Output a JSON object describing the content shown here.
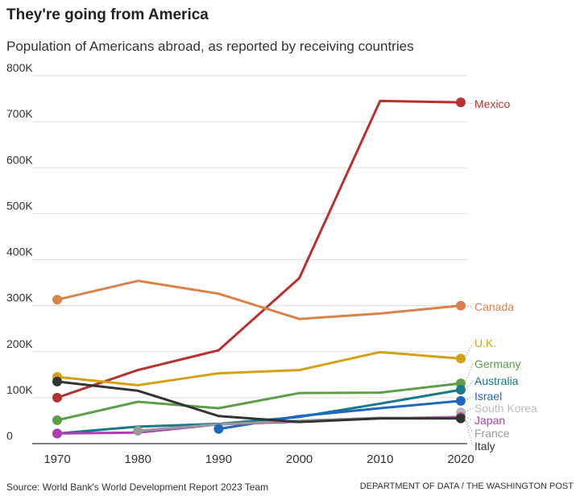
{
  "title": "They're going from America",
  "subtitle": "Population of Americans abroad, as reported by receiving countries",
  "source": "Source: World Bank's World Development Report 2023 Team",
  "credit": "DEPARTMENT OF DATA / THE WASHINGTON POST",
  "chart_data": {
    "type": "line",
    "x": [
      1970,
      1980,
      1990,
      2000,
      2010,
      2020
    ],
    "xlim": [
      1970,
      2020
    ],
    "ylim": [
      0,
      800000
    ],
    "yticks": [
      0,
      100000,
      200000,
      300000,
      400000,
      500000,
      600000,
      700000,
      800000
    ],
    "ytick_labels": [
      "0",
      "100K",
      "200K",
      "300K",
      "400K",
      "500K",
      "600K",
      "700K",
      "800K"
    ],
    "xtick_labels": [
      "1970",
      "1980",
      "1990",
      "2000",
      "2010",
      "2020"
    ],
    "grid": "horizontal",
    "legend": "direct labels at right",
    "series": [
      {
        "name": "Mexico",
        "color": "#b8312f",
        "values": [
          100000,
          160000,
          203000,
          360000,
          745000,
          742000
        ]
      },
      {
        "name": "Canada",
        "color": "#d9824a",
        "values": [
          313000,
          354000,
          326000,
          271000,
          283000,
          300000
        ]
      },
      {
        "name": "U.K.",
        "color": "#d4a017",
        "values": [
          145000,
          127000,
          153000,
          160000,
          199000,
          185000
        ]
      },
      {
        "name": "Germany",
        "color": "#5d9e48",
        "values": [
          51000,
          91000,
          77000,
          110000,
          111000,
          131000
        ]
      },
      {
        "name": "Australia",
        "color": "#17798a",
        "values": [
          22000,
          37000,
          43000,
          58000,
          87000,
          117000
        ]
      },
      {
        "name": "Israel",
        "color": "#1f68c0",
        "values": [
          null,
          null,
          32000,
          60000,
          77000,
          93000
        ]
      },
      {
        "name": "South Korea",
        "color": "#bbbbbb",
        "values": [
          null,
          null,
          null,
          null,
          null,
          68000
        ]
      },
      {
        "name": "Japan",
        "color": "#b53cb0",
        "values": [
          22000,
          24000,
          42000,
          48000,
          55000,
          58000
        ]
      },
      {
        "name": "France",
        "color": "#999999",
        "values": [
          null,
          28000,
          42000,
          50000,
          56000,
          56000
        ]
      },
      {
        "name": "Italy",
        "color": "#333333",
        "values": [
          135000,
          115000,
          60000,
          47000,
          55000,
          55000
        ]
      }
    ]
  }
}
